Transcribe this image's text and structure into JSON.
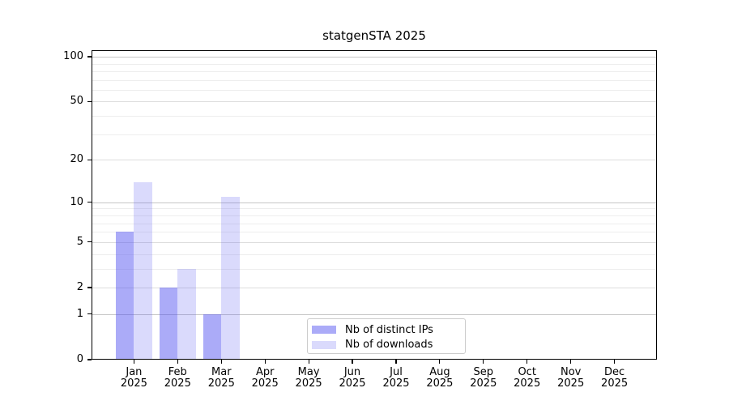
{
  "chart_data": {
    "type": "bar",
    "title": "statgenSTA 2025",
    "categories": [
      "Jan",
      "Feb",
      "Mar",
      "Apr",
      "May",
      "Jun",
      "Jul",
      "Aug",
      "Sep",
      "Oct",
      "Nov",
      "Dec"
    ],
    "x_tick_year_line": "2025",
    "series": [
      {
        "name": "Nb of distinct IPs",
        "color": "rgba(80,80,240,0.48)",
        "values": [
          6,
          2,
          1,
          0,
          0,
          0,
          0,
          0,
          0,
          0,
          0,
          0
        ]
      },
      {
        "name": "Nb of downloads",
        "color": "rgba(80,80,240,0.21)",
        "values": [
          14,
          3,
          11,
          0,
          0,
          0,
          0,
          0,
          0,
          0,
          0,
          0
        ]
      }
    ],
    "yscale": "log1p",
    "ylim": [
      0,
      110.5
    ],
    "y_tick_labels": [
      0,
      1,
      2,
      5,
      10,
      20,
      50,
      100
    ],
    "y_gridlines_decade": [
      1,
      10,
      100
    ],
    "y_gridlines_submajor": [
      2,
      5,
      20,
      50
    ],
    "y_gridlines_minor": [
      3,
      4,
      6,
      7,
      8,
      9,
      30,
      40,
      60,
      70,
      80,
      90
    ],
    "legend_position": "inside-lower-center",
    "grid": true,
    "colors": {
      "grid_decade": "#c6c6c6",
      "grid_submajor": "#dddddd",
      "grid_minor": "#ededed",
      "axis": "#000000",
      "legend_border": "#cccccc",
      "background": "#ffffff"
    }
  }
}
